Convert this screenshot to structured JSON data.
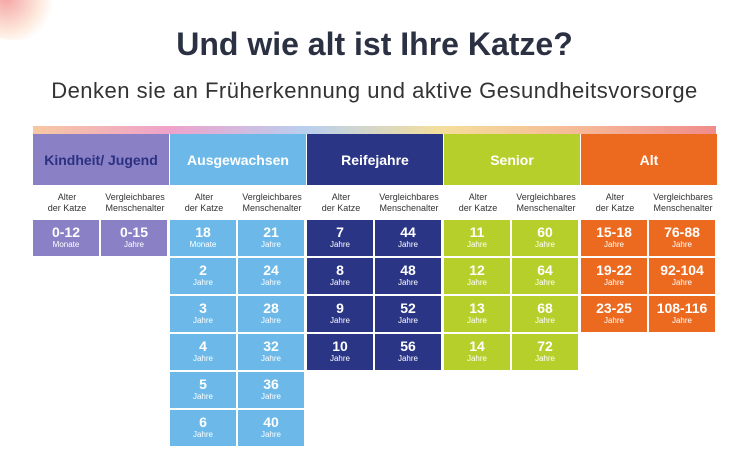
{
  "header": {
    "title": "Und wie alt ist Ihre Katze?",
    "subtitle": "Denken sie an Früherkennung und aktive Gesundheitsvorsorge"
  },
  "groups": [
    {
      "name": "Kindheit/ Jugend",
      "color": "#8a80c6",
      "text_color": "#2b3080",
      "col_labels": [
        "Alter\nder Katze",
        "Vergleichbares\nMenschenalter"
      ],
      "rows": [
        [
          {
            "value": "0-12",
            "unit": "Monate"
          },
          {
            "value": "0-15",
            "unit": "Jahre"
          }
        ]
      ]
    },
    {
      "name": "Ausgewachsen",
      "color": "#6cb9e9",
      "text_color": "#ffffff",
      "col_labels": [
        "Alter\nder Katze",
        "Vergleichbares\nMenschenalter"
      ],
      "rows": [
        [
          {
            "value": "18",
            "unit": "Monate"
          },
          {
            "value": "21",
            "unit": "Jahre"
          }
        ],
        [
          {
            "value": "2",
            "unit": "Jahre"
          },
          {
            "value": "24",
            "unit": "Jahre"
          }
        ],
        [
          {
            "value": "3",
            "unit": "Jahre"
          },
          {
            "value": "28",
            "unit": "Jahre"
          }
        ],
        [
          {
            "value": "4",
            "unit": "Jahre"
          },
          {
            "value": "32",
            "unit": "Jahre"
          }
        ],
        [
          {
            "value": "5",
            "unit": "Jahre"
          },
          {
            "value": "36",
            "unit": "Jahre"
          }
        ],
        [
          {
            "value": "6",
            "unit": "Jahre"
          },
          {
            "value": "40",
            "unit": "Jahre"
          }
        ]
      ]
    },
    {
      "name": "Reifejahre",
      "color": "#2a3585",
      "text_color": "#ffffff",
      "col_labels": [
        "Alter\nder Katze",
        "Vergleichbares\nMenschenalter"
      ],
      "rows": [
        [
          {
            "value": "7",
            "unit": "Jahre"
          },
          {
            "value": "44",
            "unit": "Jahre"
          }
        ],
        [
          {
            "value": "8",
            "unit": "Jahre"
          },
          {
            "value": "48",
            "unit": "Jahre"
          }
        ],
        [
          {
            "value": "9",
            "unit": "Jahre"
          },
          {
            "value": "52",
            "unit": "Jahre"
          }
        ],
        [
          {
            "value": "10",
            "unit": "Jahre"
          },
          {
            "value": "56",
            "unit": "Jahre"
          }
        ]
      ]
    },
    {
      "name": "Senior",
      "color": "#b7cf2b",
      "text_color": "#ffffff",
      "col_labels": [
        "Alter\nder Katze",
        "Vergleichbares\nMenschenalter"
      ],
      "rows": [
        [
          {
            "value": "11",
            "unit": "Jahre"
          },
          {
            "value": "60",
            "unit": "Jahre"
          }
        ],
        [
          {
            "value": "12",
            "unit": "Jahre"
          },
          {
            "value": "64",
            "unit": "Jahre"
          }
        ],
        [
          {
            "value": "13",
            "unit": "Jahre"
          },
          {
            "value": "68",
            "unit": "Jahre"
          }
        ],
        [
          {
            "value": "14",
            "unit": "Jahre"
          },
          {
            "value": "72",
            "unit": "Jahre"
          }
        ]
      ]
    },
    {
      "name": "Alt",
      "color": "#ec6a1f",
      "text_color": "#ffffff",
      "col_labels": [
        "Alter\nder Katze",
        "Vergleichbares\nMenschenalter"
      ],
      "rows": [
        [
          {
            "value": "15-18",
            "unit": "Jahre"
          },
          {
            "value": "76-88",
            "unit": "Jahre"
          }
        ],
        [
          {
            "value": "19-22",
            "unit": "Jahre"
          },
          {
            "value": "92-104",
            "unit": "Jahre"
          }
        ],
        [
          {
            "value": "23-25",
            "unit": "Jahre"
          },
          {
            "value": "108-116",
            "unit": "Jahre"
          }
        ]
      ]
    }
  ]
}
